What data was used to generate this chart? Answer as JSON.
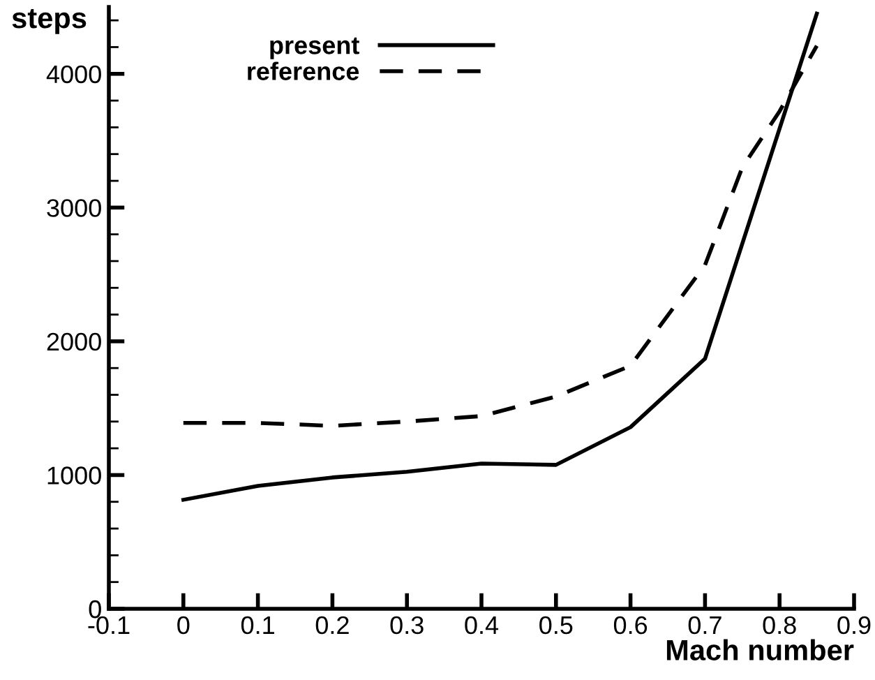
{
  "chart_data": {
    "type": "line",
    "xlabel": "Mach number",
    "ylabel": "steps",
    "xlim": [
      -0.1,
      0.9
    ],
    "ylim": [
      0,
      4500
    ],
    "xticks": [
      -0.1,
      0,
      0.1,
      0.2,
      0.3,
      0.4,
      0.5,
      0.6,
      0.7,
      0.8,
      0.9
    ],
    "yticks": [
      0,
      1000,
      2000,
      3000,
      4000
    ],
    "legend": "top",
    "grid": false,
    "series": [
      {
        "name": "present",
        "color": "#000000",
        "line_style": "solid",
        "x": [
          0,
          0.1,
          0.2,
          0.3,
          0.4,
          0.5,
          0.6,
          0.7,
          0.85
        ],
        "values": [
          815,
          919,
          982,
          1024,
          1086,
          1076,
          1358,
          1870,
          4450
        ]
      },
      {
        "name": "reference",
        "color": "#000000",
        "line_style": "dashed",
        "x": [
          0,
          0.1,
          0.2,
          0.3,
          0.4,
          0.5,
          0.6,
          0.7,
          0.75,
          0.8,
          0.85
        ],
        "values": [
          1390,
          1390,
          1368,
          1400,
          1441,
          1587,
          1817,
          2570,
          3300,
          3720,
          4210
        ]
      }
    ]
  }
}
